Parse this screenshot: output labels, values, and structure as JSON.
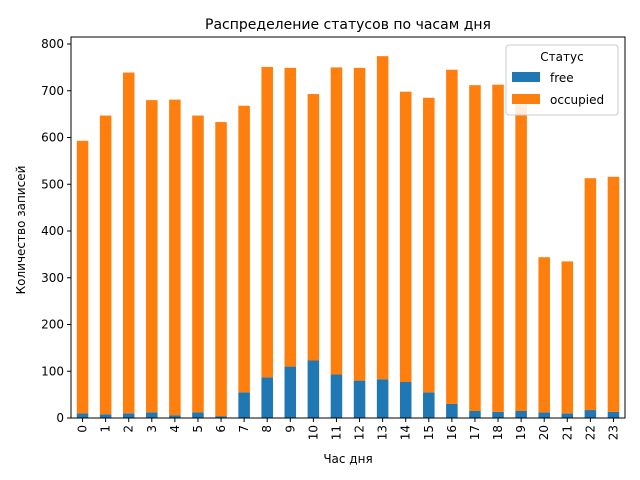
{
  "chart_data": {
    "type": "bar",
    "stacked": true,
    "title": "Распределение статусов по часам дня",
    "xlabel": "Час дня",
    "ylabel": "Количество записей",
    "ylim": [
      0,
      815
    ],
    "yticks": [
      0,
      100,
      200,
      300,
      400,
      500,
      600,
      700,
      800
    ],
    "categories": [
      "0",
      "1",
      "2",
      "3",
      "4",
      "5",
      "6",
      "7",
      "8",
      "9",
      "10",
      "11",
      "12",
      "13",
      "14",
      "15",
      "16",
      "17",
      "18",
      "19",
      "20",
      "21",
      "22",
      "23"
    ],
    "series": [
      {
        "name": "free",
        "color": "#1f77b4",
        "values": [
          10,
          8,
          10,
          12,
          6,
          12,
          4,
          55,
          87,
          110,
          123,
          93,
          80,
          83,
          77,
          55,
          30,
          15,
          13,
          15,
          12,
          10,
          17,
          13
        ]
      },
      {
        "name": "occupied",
        "color": "#ff7f0e",
        "values": [
          583,
          639,
          729,
          668,
          675,
          635,
          629,
          613,
          664,
          639,
          570,
          657,
          669,
          691,
          621,
          630,
          715,
          697,
          700,
          655,
          332,
          325,
          496,
          503
        ]
      }
    ],
    "legend": {
      "title": "Статус",
      "position": "top-right"
    },
    "grid": false
  }
}
